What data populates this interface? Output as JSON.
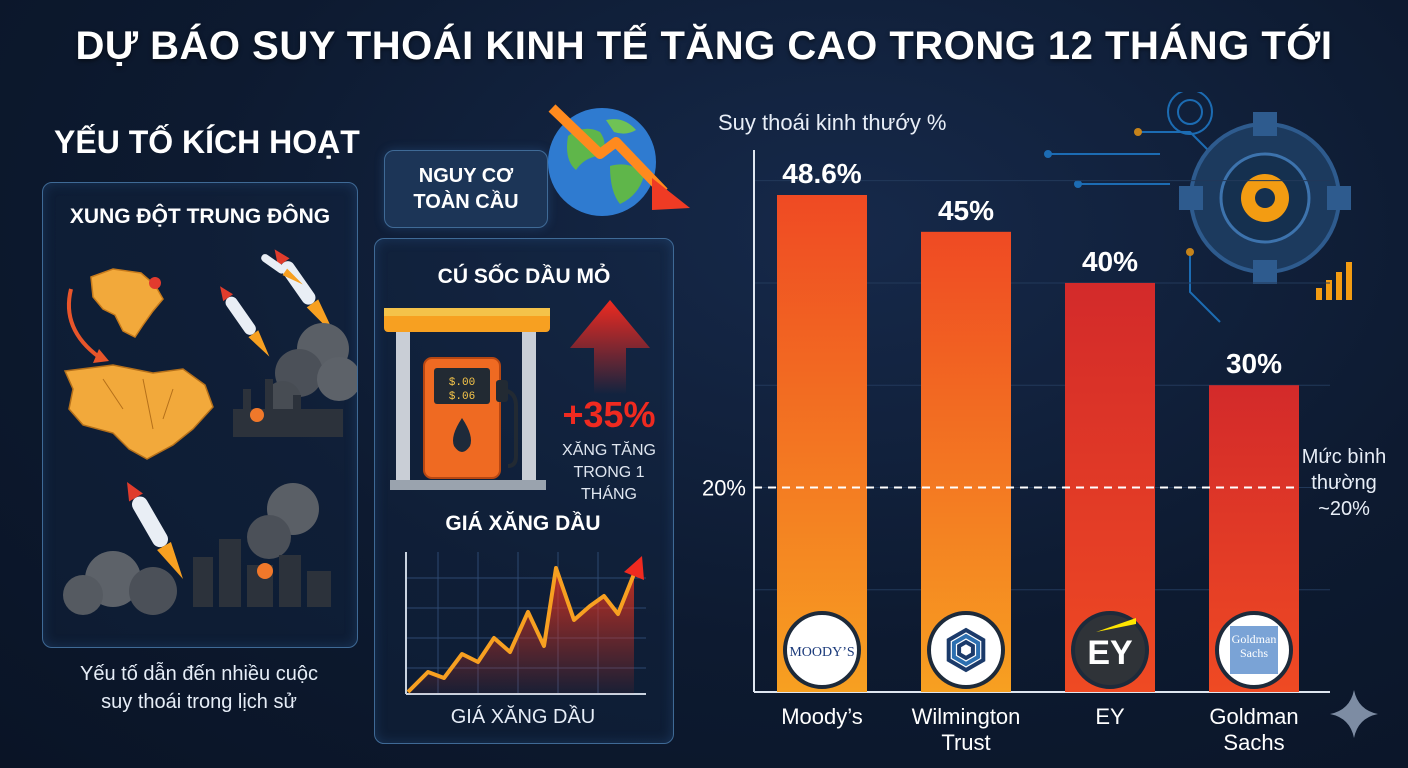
{
  "title": "DỰ BÁO SUY THOÁI KINH TẾ TĂNG CAO TRONG 12 THÁNG TỚI",
  "triggers": {
    "heading": "YẾU TỐ KÍCH HOẠT",
    "mideast_title": "XUNG ĐỘT TRUNG ĐÔNG",
    "caption_line1": "Yếu tố dẫn đến nhiều cuộc",
    "caption_line2": "suy thoái trong lịch sử"
  },
  "global_risk": {
    "line1": "NGUY CƠ",
    "line2": "TOÀN CẦU"
  },
  "oil_shock": {
    "title": "CÚ SỐC DẦU MỎ",
    "increase": "+35%",
    "note_line1": "XĂNG TĂNG",
    "note_line2": "TRONG 1 THÁNG",
    "pump_display1": "$.00",
    "pump_display2": "$.06",
    "price_chart_title": "GIÁ XĂNG DẦU",
    "price_chart_label": "GIÁ XĂNG DẦU"
  },
  "colors": {
    "bar_top": "#ef4a23",
    "bar_bottom": "#f7a021",
    "bar_top_dark": "#d32a2a",
    "accent_orange": "#f39c12",
    "background": "#0d1a30"
  },
  "chart_data": {
    "type": "bar",
    "ylabel": "Suy thoái kinh thướy %",
    "categories": [
      "Moody’s",
      "Wilmington Trust",
      "EY",
      "Goldman Sachs"
    ],
    "category_lines": [
      [
        "Moody’s"
      ],
      [
        "Wilmington",
        "Trust"
      ],
      [
        "EY"
      ],
      [
        "Goldman",
        "Sachs"
      ]
    ],
    "values": [
      48.6,
      45,
      40,
      30
    ],
    "value_labels": [
      "48.6%",
      "45%",
      "40%",
      "30%"
    ],
    "logos": [
      "MOODY’S",
      "",
      "EY",
      "Goldman Sachs"
    ],
    "ylim": [
      0,
      53
    ],
    "reference_line": {
      "value": 20,
      "label": "20%",
      "note_line1": "Mức bình",
      "note_line2": "thường",
      "note_line3": "~20%"
    },
    "grid": true,
    "legend": "none"
  }
}
